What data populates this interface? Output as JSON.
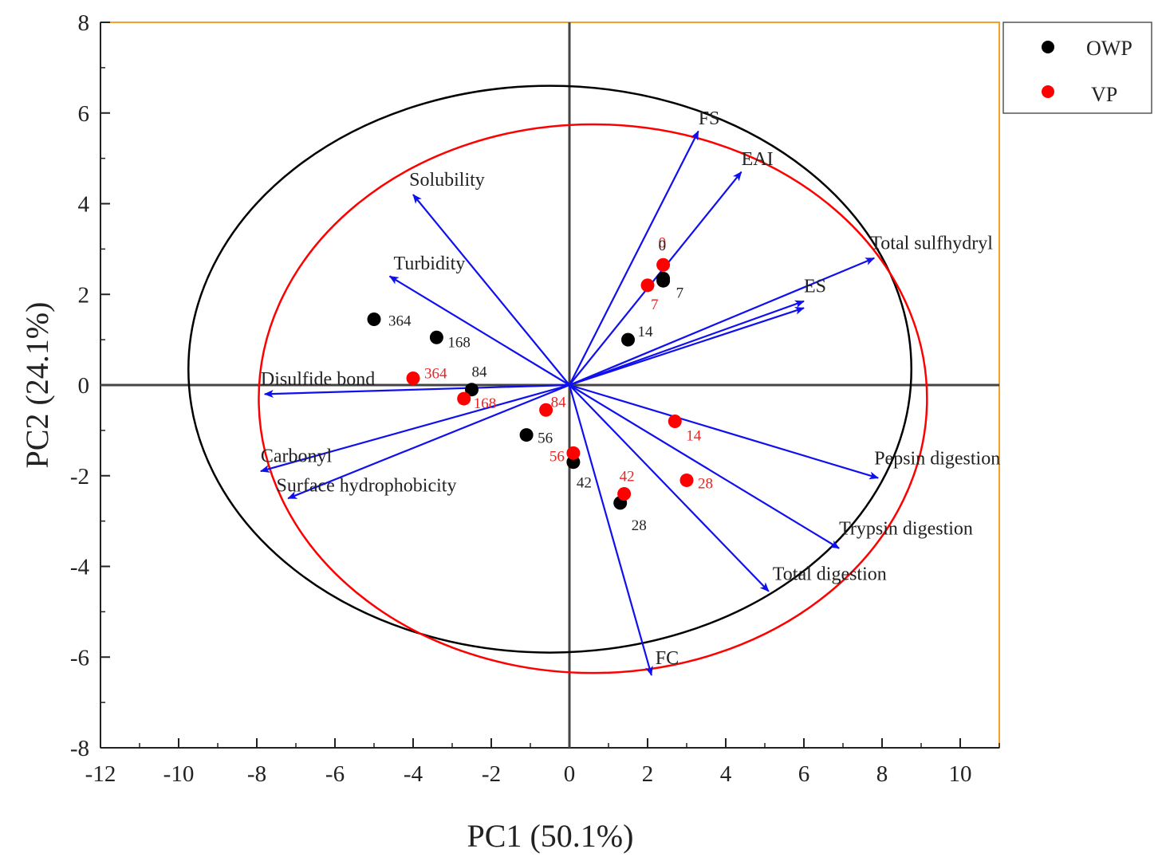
{
  "chart_data": {
    "type": "scatter",
    "subtype": "pca-biplot",
    "xlabel": "PC1 (50.1%)",
    "ylabel": "PC2 (24.1%)",
    "xlim": [
      -12,
      11
    ],
    "ylim": [
      -8,
      8
    ],
    "xticks": [
      -12,
      -10,
      -8,
      -6,
      -4,
      -2,
      0,
      2,
      4,
      6,
      8,
      10
    ],
    "yticks": [
      8,
      6,
      4,
      2,
      0,
      -2,
      -4,
      -6,
      -8
    ],
    "legend_position": "top-right, outside plot",
    "series": [
      {
        "name": "OWP",
        "color": "#000000",
        "label_color": "#222222",
        "points": [
          {
            "label": "0",
            "x": 2.4,
            "y": 2.3
          },
          {
            "label": "7",
            "x": 2.4,
            "y": 2.35
          },
          {
            "label": "14",
            "x": 1.5,
            "y": 1.0
          },
          {
            "label": "28",
            "x": 1.3,
            "y": -2.6
          },
          {
            "label": "42",
            "x": 0.1,
            "y": -1.7
          },
          {
            "label": "56",
            "x": -1.1,
            "y": -1.1
          },
          {
            "label": "84",
            "x": -2.5,
            "y": -0.1
          },
          {
            "label": "168",
            "x": -3.4,
            "y": 1.05
          },
          {
            "label": "364",
            "x": -5.0,
            "y": 1.45
          }
        ]
      },
      {
        "name": "VP",
        "color": "#ff0000",
        "label_color": "#ee2222",
        "points": [
          {
            "label": "0",
            "x": 2.4,
            "y": 2.65
          },
          {
            "label": "7",
            "x": 2.0,
            "y": 2.2
          },
          {
            "label": "14",
            "x": 2.7,
            "y": -0.8
          },
          {
            "label": "28",
            "x": 3.0,
            "y": -2.1
          },
          {
            "label": "42",
            "x": 1.4,
            "y": -2.4
          },
          {
            "label": "56",
            "x": 0.1,
            "y": -1.5
          },
          {
            "label": "84",
            "x": -0.6,
            "y": -0.55
          },
          {
            "label": "168",
            "x": -2.7,
            "y": -0.3
          },
          {
            "label": "364",
            "x": -4.0,
            "y": 0.15
          }
        ]
      }
    ],
    "vectors": [
      {
        "name": "FS",
        "x": 3.3,
        "y": 5.6
      },
      {
        "name": "EAI",
        "x": 4.4,
        "y": 4.7
      },
      {
        "name": "Solubility",
        "x": -4.0,
        "y": 4.2
      },
      {
        "name": "Turbidity",
        "x": -4.6,
        "y": 2.4
      },
      {
        "name": "Total sulfhydryl",
        "x": 7.8,
        "y": 2.8
      },
      {
        "name": "ES",
        "x": 6.0,
        "y": 1.85
      },
      {
        "name": "ES (2)",
        "x": 6.0,
        "y": 1.7
      },
      {
        "name": "Disulfide bond",
        "x": -7.8,
        "y": -0.2
      },
      {
        "name": "Carbonyl",
        "x": -7.9,
        "y": -1.9
      },
      {
        "name": "Surface hydrophobicity",
        "x": -7.2,
        "y": -2.5
      },
      {
        "name": "Pepsin digestion",
        "x": 7.9,
        "y": -2.05
      },
      {
        "name": "Trypsin digestion",
        "x": 6.9,
        "y": -3.6
      },
      {
        "name": "Total digestion",
        "x": 5.1,
        "y": -4.55
      },
      {
        "name": "FC",
        "x": 2.1,
        "y": -6.4
      }
    ],
    "vector_labels": [
      {
        "text": "FS",
        "x": 3.3,
        "y": 5.75
      },
      {
        "text": "EAI",
        "x": 4.4,
        "y": 4.85
      },
      {
        "text": "Solubility",
        "x": -4.1,
        "y": 4.4
      },
      {
        "text": "Turbidity",
        "x": -4.5,
        "y": 2.55
      },
      {
        "text": "Total sulfhydryl",
        "x": 7.7,
        "y": 3.0
      },
      {
        "text": "ES",
        "x": 6.0,
        "y": 2.05
      },
      {
        "text": "Disulfide bond",
        "x": -7.9,
        "y": 0.0
      },
      {
        "text": "Carbonyl",
        "x": -7.9,
        "y": -1.7
      },
      {
        "text": "Surface hydrophobicity",
        "x": -7.5,
        "y": -2.35
      },
      {
        "text": "Pepsin digestion",
        "x": 7.8,
        "y": -1.75
      },
      {
        "text": "Trypsin digestion",
        "x": 6.9,
        "y": -3.3
      },
      {
        "text": "Total digestion",
        "x": 5.2,
        "y": -4.3
      },
      {
        "text": "FC",
        "x": 2.2,
        "y": -6.15
      }
    ],
    "ellipses": [
      {
        "name": "OWP confidence ellipse",
        "color": "#000000",
        "cx": -0.5,
        "cy": 0.35,
        "rx": 9.25,
        "ry": 6.25
      },
      {
        "name": "VP confidence ellipse",
        "color": "#ff0000",
        "cx": 0.6,
        "cy": -0.3,
        "rx": 8.55,
        "ry": 6.05
      }
    ]
  }
}
